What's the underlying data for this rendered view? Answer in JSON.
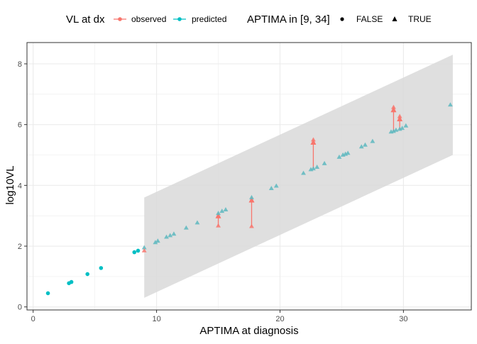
{
  "chart_data": {
    "type": "scatter",
    "xlabel": "APTIMA at diagnosis",
    "ylabel": "log10VL",
    "xlim": [
      -0.5,
      35.5
    ],
    "ylim": [
      -0.1,
      8.7
    ],
    "x_ticks": [
      0,
      10,
      20,
      30
    ],
    "y_ticks": [
      0,
      2,
      4,
      6,
      8
    ],
    "x_tick_labels": [
      "0",
      "10",
      "20",
      "30"
    ],
    "y_tick_labels": [
      "0",
      "2",
      "4",
      "6",
      "8"
    ],
    "grid": true,
    "legend_position": "top",
    "legend": {
      "color_title": "VL at dx",
      "color_entries": [
        "observed",
        "predicted"
      ],
      "shape_title": "APTIMA in [9, 34]",
      "shape_entries": [
        "FALSE",
        "TRUE"
      ]
    },
    "colors": {
      "observed": "#F8766D",
      "predicted": "#00BFC4",
      "band": "#D9D9D9",
      "grid": "#EBEBEB",
      "border": "#333333"
    },
    "band": {
      "x": [
        9,
        34
      ],
      "lower": [
        0.3,
        5.0
      ],
      "upper": [
        3.6,
        8.3
      ]
    },
    "observed_true": [
      {
        "x": 9.0,
        "y": 1.85
      },
      {
        "x": 15.0,
        "y": 2.67
      },
      {
        "x": 17.7,
        "y": 2.65
      },
      {
        "x": 22.7,
        "y": 5.5
      },
      {
        "x": 29.2,
        "y": 6.57
      },
      {
        "x": 29.7,
        "y": 6.27
      }
    ],
    "arrows": [
      {
        "x": 15.0,
        "from": 2.67,
        "to": 3.08
      },
      {
        "x": 17.7,
        "from": 2.65,
        "to": 3.6
      },
      {
        "x": 22.7,
        "from": 4.55,
        "to": 5.5
      },
      {
        "x": 29.2,
        "from": 5.78,
        "to": 6.57
      },
      {
        "x": 29.7,
        "from": 5.85,
        "to": 6.27
      }
    ],
    "predicted_false": [
      {
        "x": 1.2,
        "y": 0.45
      },
      {
        "x": 2.9,
        "y": 0.78
      },
      {
        "x": 3.1,
        "y": 0.82
      },
      {
        "x": 4.4,
        "y": 1.08
      },
      {
        "x": 5.5,
        "y": 1.28
      },
      {
        "x": 8.2,
        "y": 1.8
      },
      {
        "x": 8.5,
        "y": 1.85
      }
    ],
    "predicted_true": [
      {
        "x": 9.0,
        "y": 1.95
      },
      {
        "x": 9.9,
        "y": 2.12
      },
      {
        "x": 10.1,
        "y": 2.17
      },
      {
        "x": 10.8,
        "y": 2.3
      },
      {
        "x": 11.1,
        "y": 2.35
      },
      {
        "x": 11.4,
        "y": 2.4
      },
      {
        "x": 12.4,
        "y": 2.6
      },
      {
        "x": 13.3,
        "y": 2.77
      },
      {
        "x": 15.0,
        "y": 3.08
      },
      {
        "x": 15.3,
        "y": 3.15
      },
      {
        "x": 15.6,
        "y": 3.2
      },
      {
        "x": 17.7,
        "y": 3.6
      },
      {
        "x": 19.3,
        "y": 3.9
      },
      {
        "x": 19.7,
        "y": 3.98
      },
      {
        "x": 21.9,
        "y": 4.4
      },
      {
        "x": 22.5,
        "y": 4.52
      },
      {
        "x": 22.7,
        "y": 4.55
      },
      {
        "x": 23.0,
        "y": 4.6
      },
      {
        "x": 23.6,
        "y": 4.72
      },
      {
        "x": 24.8,
        "y": 4.93
      },
      {
        "x": 25.1,
        "y": 5.0
      },
      {
        "x": 25.3,
        "y": 5.03
      },
      {
        "x": 25.5,
        "y": 5.06
      },
      {
        "x": 26.6,
        "y": 5.27
      },
      {
        "x": 26.9,
        "y": 5.33
      },
      {
        "x": 27.5,
        "y": 5.45
      },
      {
        "x": 29.0,
        "y": 5.76
      },
      {
        "x": 29.2,
        "y": 5.78
      },
      {
        "x": 29.4,
        "y": 5.82
      },
      {
        "x": 29.7,
        "y": 5.85
      },
      {
        "x": 29.9,
        "y": 5.88
      },
      {
        "x": 30.2,
        "y": 5.96
      },
      {
        "x": 33.8,
        "y": 6.65
      }
    ]
  }
}
